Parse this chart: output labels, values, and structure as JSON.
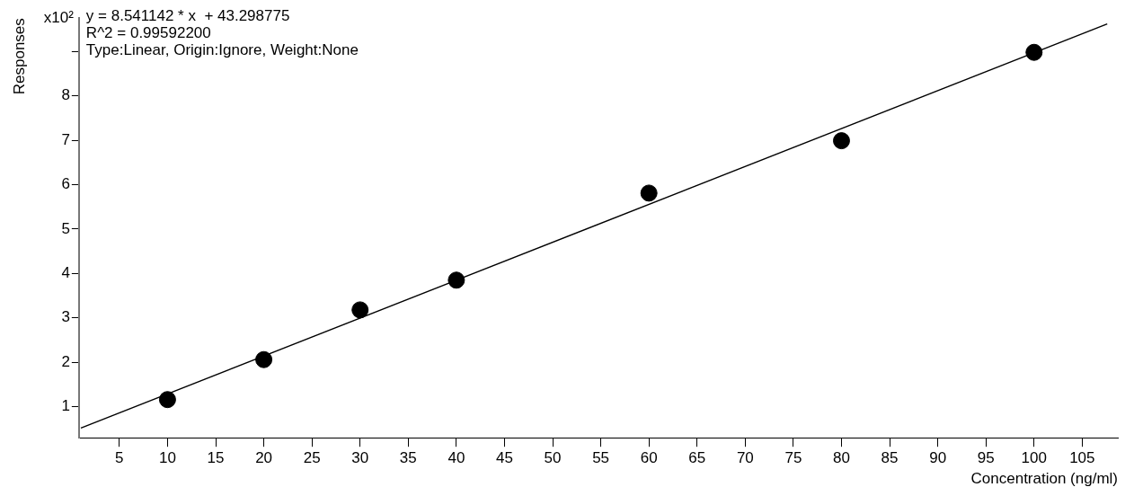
{
  "chart_data": {
    "type": "scatter",
    "xlabel": "Concentration (ng/ml)",
    "ylabel": "Responses",
    "xlim": [
      0.8,
      108.7
    ],
    "ylim": [
      0.3,
      9.75
    ],
    "xticks": [
      5,
      10,
      15,
      20,
      25,
      30,
      35,
      40,
      45,
      50,
      55,
      60,
      65,
      70,
      75,
      80,
      85,
      90,
      95,
      100,
      105
    ],
    "yticks": [
      1,
      2,
      3,
      4,
      5,
      6,
      7,
      8,
      {
        "value": 9,
        "label": null
      }
    ],
    "grid": false,
    "legend": false,
    "annotations": [
      "x10²",
      "y = 8.541142 * x  + 43.298775",
      "R^2 = 0.99592200",
      "Type:Linear, Origin:Ignore, Weight:None"
    ],
    "series": [
      {
        "marker": "circle",
        "color": "#000000",
        "x": [
          10,
          20,
          30,
          40,
          60,
          80,
          100
        ],
        "values": [
          1.16,
          2.06,
          3.18,
          3.85,
          5.81,
          6.99,
          8.98
        ]
      },
      {
        "type": "line",
        "marker": "none",
        "color": "#000000",
        "x": [
          1.0,
          107.6
        ],
        "values": [
          0.52,
          9.62
        ]
      }
    ]
  }
}
